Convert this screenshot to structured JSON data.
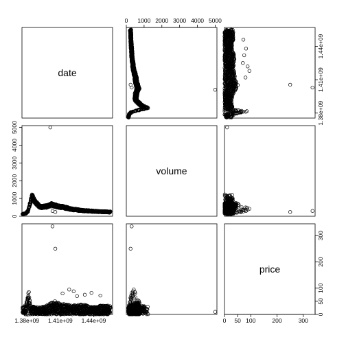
{
  "chart_data": {
    "type": "scatter",
    "variables": [
      "date",
      "volume",
      "price"
    ],
    "ranges": {
      "date": [
        1375500000,
        1457000000
      ],
      "volume": [
        0,
        5100
      ],
      "price": [
        0,
        345
      ]
    },
    "ticks": {
      "date": {
        "values": [
          1380000000,
          1410000000,
          1440000000
        ],
        "labels": [
          "1.38e+09",
          "1.41e+09",
          "1.44e+09"
        ]
      },
      "volume": {
        "values": [
          0,
          1000,
          2000,
          3000,
          4000,
          5000
        ],
        "labels": [
          "0",
          "1000",
          "2000",
          "3000",
          "4000",
          "5000"
        ]
      },
      "price": {
        "values": [
          0,
          50,
          100,
          200,
          300
        ],
        "labels": [
          "0",
          "50",
          "100",
          "200",
          "300"
        ]
      }
    },
    "volume_profile": [
      [
        1376000000,
        120
      ],
      [
        1379000000,
        160
      ],
      [
        1381000000,
        300
      ],
      [
        1382500000,
        650
      ],
      [
        1383500000,
        900
      ],
      [
        1384500000,
        1150
      ],
      [
        1385500000,
        1000
      ],
      [
        1387000000,
        850
      ],
      [
        1389000000,
        700
      ],
      [
        1391000000,
        560
      ],
      [
        1394000000,
        520
      ],
      [
        1398000000,
        560
      ],
      [
        1402000000,
        650
      ],
      [
        1405000000,
        600
      ],
      [
        1408000000,
        560
      ],
      [
        1412000000,
        520
      ],
      [
        1416000000,
        460
      ],
      [
        1420000000,
        400
      ],
      [
        1425000000,
        360
      ],
      [
        1430000000,
        320
      ],
      [
        1435000000,
        300
      ],
      [
        1440000000,
        280
      ],
      [
        1445000000,
        260
      ],
      [
        1450000000,
        250
      ],
      [
        1455000000,
        240
      ]
    ],
    "price_profile": [
      [
        1376000000,
        12
      ],
      [
        1379000000,
        18
      ],
      [
        1381000000,
        35
      ],
      [
        1382000000,
        45
      ],
      [
        1383000000,
        15
      ],
      [
        1390000000,
        12
      ],
      [
        1395000000,
        14
      ],
      [
        1400000000,
        18
      ],
      [
        1405000000,
        24
      ],
      [
        1410000000,
        20
      ],
      [
        1415000000,
        18
      ],
      [
        1420000000,
        16
      ],
      [
        1425000000,
        17
      ],
      [
        1430000000,
        18
      ],
      [
        1435000000,
        15
      ],
      [
        1440000000,
        14
      ],
      [
        1445000000,
        15
      ],
      [
        1450000000,
        16
      ],
      [
        1455000000,
        15
      ]
    ],
    "outliers": [
      {
        "date": 1401000000,
        "volume": 5000,
        "price": 10
      },
      {
        "date": 1403000000,
        "volume": 300,
        "price": 335
      },
      {
        "date": 1405500000,
        "volume": 240,
        "price": 250
      },
      {
        "date": 1418000000,
        "volume": 420,
        "price": 95
      },
      {
        "date": 1422000000,
        "volume": 380,
        "price": 88
      },
      {
        "date": 1412000000,
        "volume": 500,
        "price": 80
      },
      {
        "date": 1432000000,
        "volume": 330,
        "price": 75
      },
      {
        "date": 1438000000,
        "volume": 300,
        "price": 82
      },
      {
        "date": 1425000000,
        "volume": 350,
        "price": 70
      },
      {
        "date": 1446000000,
        "volume": 270,
        "price": 72
      }
    ]
  }
}
